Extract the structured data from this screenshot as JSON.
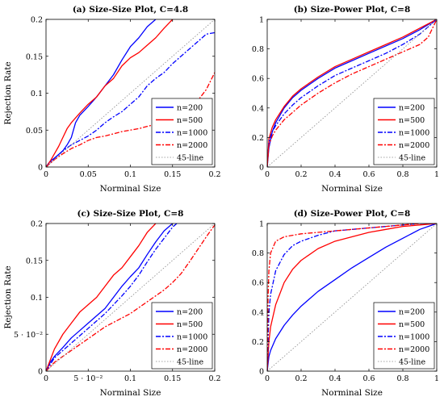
{
  "chart_data": [
    {
      "type": "line",
      "title": "(a) Size-Size Plot, C=4.8",
      "xlabel": "Norminal Size",
      "ylabel": "Rejection Rate",
      "xlim": [
        0,
        0.2
      ],
      "ylim": [
        0,
        0.2
      ],
      "xticks": [
        0,
        0.05,
        0.1,
        0.15,
        0.2
      ],
      "xtick_labels": [
        "0",
        "0.05",
        "0.1",
        "0.15",
        "0.2"
      ],
      "yticks": [
        0,
        0.05,
        0.1,
        0.15,
        0.2
      ],
      "ytick_labels": [
        "0",
        "0.05",
        "0.1",
        "0.15",
        "0.2"
      ],
      "legend_position": "lower-right",
      "series": [
        {
          "name": "n=200",
          "color": "#0000ff",
          "dash": "solid",
          "x": [
            0,
            0.005,
            0.01,
            0.02,
            0.025,
            0.03,
            0.035,
            0.04,
            0.05,
            0.06,
            0.07,
            0.08,
            0.09,
            0.1,
            0.11,
            0.12,
            0.13
          ],
          "y": [
            0,
            0.008,
            0.012,
            0.022,
            0.03,
            0.04,
            0.06,
            0.07,
            0.082,
            0.095,
            0.11,
            0.125,
            0.145,
            0.163,
            0.175,
            0.19,
            0.2
          ]
        },
        {
          "name": "n=500",
          "color": "#ff0000",
          "dash": "solid",
          "x": [
            0,
            0.005,
            0.01,
            0.015,
            0.02,
            0.025,
            0.03,
            0.04,
            0.05,
            0.06,
            0.07,
            0.08,
            0.09,
            0.1,
            0.11,
            0.12,
            0.13,
            0.14,
            0.15
          ],
          "y": [
            0,
            0.008,
            0.018,
            0.028,
            0.04,
            0.052,
            0.06,
            0.073,
            0.085,
            0.095,
            0.11,
            0.12,
            0.137,
            0.148,
            0.155,
            0.165,
            0.175,
            0.188,
            0.2
          ]
        },
        {
          "name": "n=1000",
          "color": "#0000ff",
          "dash": "6 2 2 2",
          "x": [
            0,
            0.01,
            0.02,
            0.03,
            0.04,
            0.05,
            0.06,
            0.07,
            0.08,
            0.09,
            0.1,
            0.11,
            0.12,
            0.13,
            0.14,
            0.15,
            0.16,
            0.17,
            0.18,
            0.19,
            0.2
          ],
          "y": [
            0,
            0.012,
            0.022,
            0.03,
            0.036,
            0.042,
            0.05,
            0.06,
            0.068,
            0.075,
            0.085,
            0.095,
            0.11,
            0.12,
            0.128,
            0.14,
            0.15,
            0.16,
            0.17,
            0.18,
            0.182
          ]
        },
        {
          "name": "n=2000",
          "color": "#ff0000",
          "dash": "6 2 2 2",
          "x": [
            0,
            0.01,
            0.02,
            0.03,
            0.04,
            0.05,
            0.06,
            0.07,
            0.08,
            0.09,
            0.1,
            0.11,
            0.12,
            0.13,
            0.14,
            0.15,
            0.16,
            0.17,
            0.18,
            0.19,
            0.2
          ],
          "y": [
            0,
            0.01,
            0.018,
            0.025,
            0.03,
            0.036,
            0.04,
            0.042,
            0.045,
            0.048,
            0.05,
            0.052,
            0.055,
            0.058,
            0.062,
            0.066,
            0.072,
            0.08,
            0.09,
            0.105,
            0.128
          ]
        },
        {
          "name": "45-line",
          "color": "#888888",
          "dash": "1.5 2",
          "x": [
            0,
            0.2
          ],
          "y": [
            0,
            0.2
          ]
        }
      ]
    },
    {
      "type": "line",
      "title": "(b) Size-Power Plot, C=8",
      "xlabel": "Norminal Size",
      "ylabel": "",
      "xlim": [
        0,
        1
      ],
      "ylim": [
        0,
        1
      ],
      "xticks": [
        0,
        0.2,
        0.4,
        0.6,
        0.8,
        1
      ],
      "xtick_labels": [
        "0",
        "0.2",
        "0.4",
        "0.6",
        "0.8",
        "1"
      ],
      "yticks": [
        0,
        0.2,
        0.4,
        0.6,
        0.8,
        1
      ],
      "ytick_labels": [
        "0",
        "0.2",
        "0.4",
        "0.6",
        "0.8",
        "1"
      ],
      "legend_position": "lower-right",
      "series": [
        {
          "name": "n=200",
          "color": "#0000ff",
          "dash": "solid",
          "x": [
            0,
            0.01,
            0.03,
            0.05,
            0.1,
            0.15,
            0.2,
            0.3,
            0.4,
            0.5,
            0.6,
            0.7,
            0.8,
            0.9,
            1
          ],
          "y": [
            0,
            0.13,
            0.24,
            0.3,
            0.4,
            0.47,
            0.52,
            0.6,
            0.67,
            0.72,
            0.77,
            0.82,
            0.87,
            0.93,
            1
          ]
        },
        {
          "name": "n=500",
          "color": "#ff0000",
          "dash": "solid",
          "x": [
            0,
            0.01,
            0.03,
            0.05,
            0.1,
            0.15,
            0.2,
            0.3,
            0.4,
            0.5,
            0.6,
            0.7,
            0.8,
            0.9,
            1
          ],
          "y": [
            0,
            0.19,
            0.27,
            0.32,
            0.41,
            0.48,
            0.53,
            0.61,
            0.68,
            0.73,
            0.78,
            0.83,
            0.88,
            0.94,
            1
          ]
        },
        {
          "name": "n=1000",
          "color": "#0000ff",
          "dash": "6 2 2 2",
          "x": [
            0,
            0.01,
            0.03,
            0.05,
            0.1,
            0.15,
            0.2,
            0.3,
            0.4,
            0.5,
            0.6,
            0.7,
            0.8,
            0.9,
            1
          ],
          "y": [
            0,
            0.17,
            0.24,
            0.28,
            0.36,
            0.42,
            0.47,
            0.55,
            0.62,
            0.67,
            0.72,
            0.77,
            0.83,
            0.9,
            1
          ]
        },
        {
          "name": "n=2000",
          "color": "#ff0000",
          "dash": "6 2 2 2",
          "x": [
            0,
            0.01,
            0.03,
            0.05,
            0.1,
            0.15,
            0.2,
            0.3,
            0.4,
            0.5,
            0.6,
            0.7,
            0.8,
            0.9,
            0.95,
            1
          ],
          "y": [
            0,
            0.15,
            0.21,
            0.25,
            0.32,
            0.37,
            0.42,
            0.5,
            0.57,
            0.63,
            0.68,
            0.73,
            0.78,
            0.83,
            0.88,
            1
          ]
        },
        {
          "name": "45-line",
          "color": "#888888",
          "dash": "1.5 2",
          "x": [
            0,
            1
          ],
          "y": [
            0,
            1
          ]
        }
      ]
    },
    {
      "type": "line",
      "title": "(c) Size-Size Plot, C=8",
      "xlabel": "Norminal Size",
      "ylabel": "Rejection Rate",
      "xlim": [
        0,
        0.2
      ],
      "ylim": [
        0,
        0.2
      ],
      "xticks": [
        0,
        0.05,
        0.1,
        0.15,
        0.2
      ],
      "xtick_labels": [
        "0",
        "5 · 10⁻²",
        "0.1",
        "0.15",
        "0.2"
      ],
      "yticks": [
        0,
        0.05,
        0.1,
        0.15,
        0.2
      ],
      "ytick_labels": [
        "0",
        "5 · 10⁻²",
        "0.1",
        "0.15",
        "0.2"
      ],
      "legend_position": "lower-right",
      "series": [
        {
          "name": "n=200",
          "color": "#0000ff",
          "dash": "solid",
          "x": [
            0,
            0.005,
            0.01,
            0.02,
            0.03,
            0.04,
            0.05,
            0.06,
            0.07,
            0.08,
            0.09,
            0.1,
            0.11,
            0.12,
            0.13,
            0.14,
            0.15
          ],
          "y": [
            0,
            0.012,
            0.02,
            0.032,
            0.045,
            0.055,
            0.065,
            0.075,
            0.085,
            0.1,
            0.115,
            0.128,
            0.14,
            0.158,
            0.175,
            0.19,
            0.2
          ]
        },
        {
          "name": "n=500",
          "color": "#ff0000",
          "dash": "solid",
          "x": [
            0,
            0.005,
            0.01,
            0.02,
            0.03,
            0.04,
            0.05,
            0.06,
            0.07,
            0.08,
            0.09,
            0.1,
            0.11,
            0.12,
            0.13
          ],
          "y": [
            0,
            0.015,
            0.03,
            0.05,
            0.065,
            0.08,
            0.09,
            0.1,
            0.115,
            0.13,
            0.14,
            0.155,
            0.17,
            0.188,
            0.2
          ]
        },
        {
          "name": "n=1000",
          "color": "#0000ff",
          "dash": "6 2 2 2",
          "x": [
            0,
            0.01,
            0.02,
            0.03,
            0.04,
            0.05,
            0.06,
            0.07,
            0.08,
            0.09,
            0.1,
            0.11,
            0.12,
            0.13,
            0.14,
            0.15,
            0.155
          ],
          "y": [
            0,
            0.018,
            0.028,
            0.038,
            0.048,
            0.058,
            0.068,
            0.078,
            0.09,
            0.102,
            0.115,
            0.13,
            0.148,
            0.165,
            0.18,
            0.195,
            0.2
          ]
        },
        {
          "name": "n=2000",
          "color": "#ff0000",
          "dash": "6 2 2 2",
          "x": [
            0,
            0.01,
            0.02,
            0.03,
            0.04,
            0.05,
            0.06,
            0.07,
            0.08,
            0.09,
            0.1,
            0.11,
            0.12,
            0.13,
            0.14,
            0.15,
            0.16,
            0.17,
            0.18,
            0.19,
            0.2
          ],
          "y": [
            0,
            0.012,
            0.02,
            0.028,
            0.036,
            0.044,
            0.052,
            0.06,
            0.066,
            0.072,
            0.078,
            0.086,
            0.094,
            0.102,
            0.11,
            0.12,
            0.132,
            0.148,
            0.165,
            0.182,
            0.198
          ]
        },
        {
          "name": "45-line",
          "color": "#888888",
          "dash": "1.5 2",
          "x": [
            0,
            0.2
          ],
          "y": [
            0,
            0.2
          ]
        }
      ]
    },
    {
      "type": "line",
      "title": "(d) Size-Power Plot, C=8",
      "xlabel": "Norminal Size",
      "ylabel": "",
      "xlim": [
        0,
        1
      ],
      "ylim": [
        0,
        1
      ],
      "xticks": [
        0,
        0.2,
        0.4,
        0.6,
        0.8,
        1
      ],
      "xtick_labels": [
        "0",
        "0.2",
        "0.4",
        "0.6",
        "0.8",
        "1"
      ],
      "yticks": [
        0,
        0.2,
        0.4,
        0.6,
        0.8,
        1
      ],
      "ytick_labels": [
        "0",
        "0.2",
        "0.4",
        "0.6",
        "0.8",
        "1"
      ],
      "legend_position": "lower-right",
      "series": [
        {
          "name": "n=200",
          "color": "#0000ff",
          "dash": "solid",
          "x": [
            0,
            0.01,
            0.02,
            0.05,
            0.1,
            0.15,
            0.2,
            0.3,
            0.4,
            0.5,
            0.6,
            0.7,
            0.8,
            0.9,
            0.95,
            1
          ],
          "y": [
            0,
            0.1,
            0.14,
            0.22,
            0.31,
            0.38,
            0.44,
            0.54,
            0.62,
            0.7,
            0.77,
            0.84,
            0.9,
            0.96,
            0.98,
            1
          ]
        },
        {
          "name": "n=500",
          "color": "#ff0000",
          "dash": "solid",
          "x": [
            0,
            0.01,
            0.02,
            0.05,
            0.1,
            0.15,
            0.2,
            0.3,
            0.4,
            0.5,
            0.6,
            0.7,
            0.8,
            0.9,
            1
          ],
          "y": [
            0,
            0.2,
            0.3,
            0.45,
            0.6,
            0.69,
            0.75,
            0.83,
            0.88,
            0.91,
            0.94,
            0.96,
            0.98,
            0.99,
            1
          ]
        },
        {
          "name": "n=1000",
          "color": "#0000ff",
          "dash": "6 2 2 2",
          "x": [
            0,
            0.01,
            0.02,
            0.05,
            0.1,
            0.15,
            0.2,
            0.3,
            0.4,
            0.5,
            0.6,
            0.7,
            0.8,
            0.9,
            1
          ],
          "y": [
            0,
            0.4,
            0.52,
            0.68,
            0.79,
            0.85,
            0.88,
            0.92,
            0.95,
            0.96,
            0.97,
            0.98,
            0.99,
            1,
            1
          ]
        },
        {
          "name": "n=2000",
          "color": "#ff0000",
          "dash": "6 2 2 2",
          "x": [
            0,
            0.005,
            0.01,
            0.02,
            0.05,
            0.1,
            0.15,
            0.2,
            0.3,
            0.4,
            0.5,
            0.6,
            0.7,
            0.8,
            0.9,
            1
          ],
          "y": [
            0,
            0.5,
            0.68,
            0.8,
            0.88,
            0.91,
            0.92,
            0.93,
            0.94,
            0.95,
            0.96,
            0.97,
            0.98,
            0.99,
            1,
            1
          ]
        },
        {
          "name": "45-line",
          "color": "#888888",
          "dash": "1.5 2",
          "x": [
            0,
            1
          ],
          "y": [
            0,
            1
          ]
        }
      ]
    }
  ]
}
